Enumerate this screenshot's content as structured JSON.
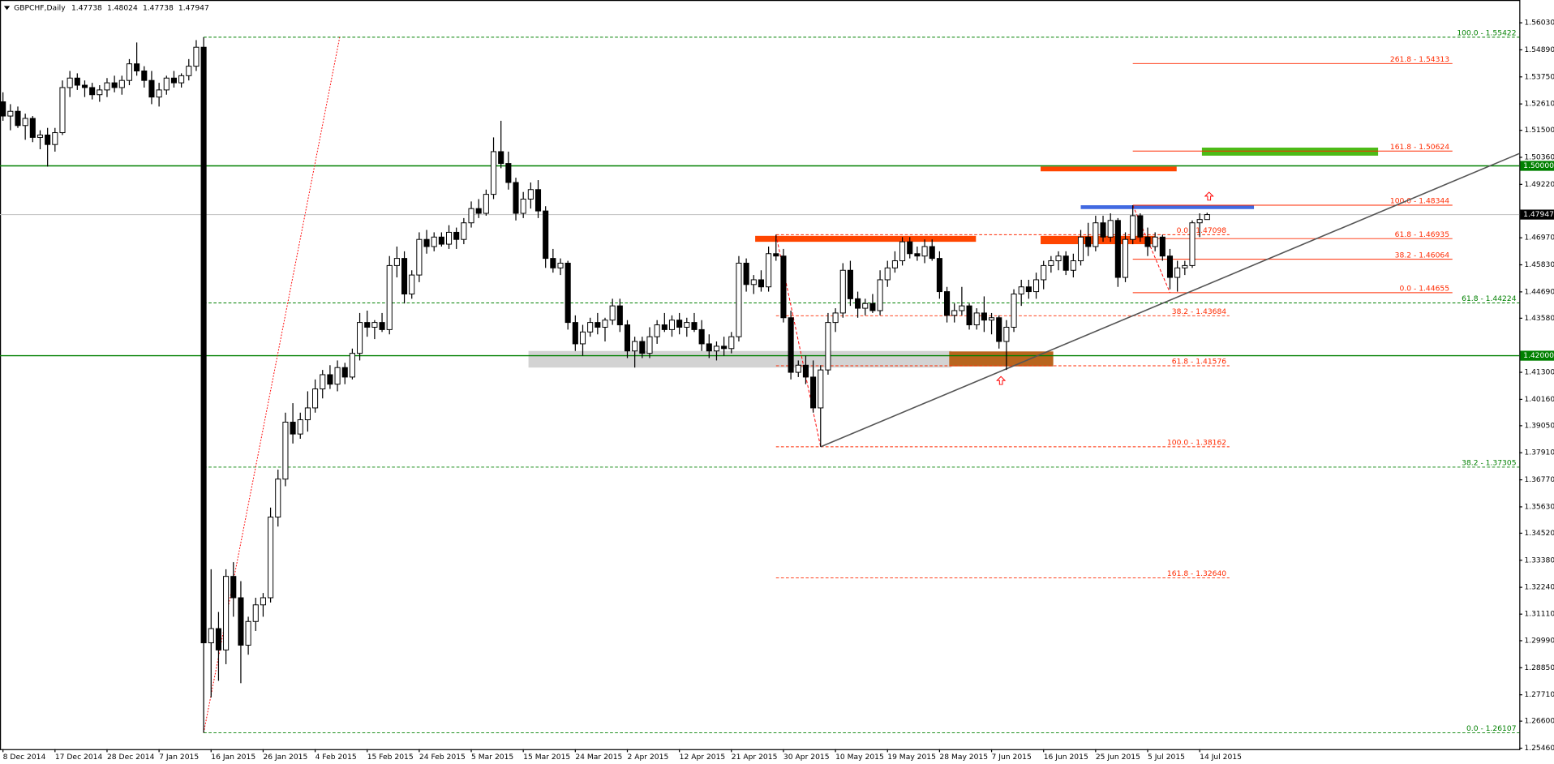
{
  "chart_data": {
    "type": "candlestick",
    "symbol": "GBPCHF,Daily",
    "up_color": "#ffffff",
    "down_color": "#000000",
    "edge_color": "#000000",
    "ylim": [
      1.2542,
      1.5699
    ],
    "xlim": [
      -0.4,
      204
    ],
    "yticks": [
      {
        "value": 1.5603,
        "label": "1.56030"
      },
      {
        "value": 1.5489,
        "label": "1.54890"
      },
      {
        "value": 1.5375,
        "label": "1.53750"
      },
      {
        "value": 1.5261,
        "label": "1.52610"
      },
      {
        "value": 1.515,
        "label": "1.51500"
      },
      {
        "value": 1.5036,
        "label": "1.50360"
      },
      {
        "value": 1.4922,
        "label": "1.49220"
      },
      {
        "value": 1.4697,
        "label": "1.46970"
      },
      {
        "value": 1.4583,
        "label": "1.45830"
      },
      {
        "value": 1.4469,
        "label": "1.44690"
      },
      {
        "value": 1.4358,
        "label": "1.43580"
      },
      {
        "value": 1.413,
        "label": "1.41300"
      },
      {
        "value": 1.4016,
        "label": "1.40160"
      },
      {
        "value": 1.3905,
        "label": "1.39050"
      },
      {
        "value": 1.3791,
        "label": "1.37910"
      },
      {
        "value": 1.3677,
        "label": "1.36770"
      },
      {
        "value": 1.3563,
        "label": "1.35630"
      },
      {
        "value": 1.3452,
        "label": "1.34520"
      },
      {
        "value": 1.3338,
        "label": "1.33380"
      },
      {
        "value": 1.3224,
        "label": "1.32240"
      },
      {
        "value": 1.3111,
        "label": "1.31110"
      },
      {
        "value": 1.2999,
        "label": "1.29990"
      },
      {
        "value": 1.2885,
        "label": "1.28850"
      },
      {
        "value": 1.2771,
        "label": "1.27710"
      },
      {
        "value": 1.266,
        "label": "1.26600"
      },
      {
        "value": 1.2546,
        "label": "1.25460"
      }
    ],
    "xticks": [
      {
        "value": 0,
        "label": "8 Dec 2014"
      },
      {
        "value": 7,
        "label": "17 Dec 2014"
      },
      {
        "value": 14,
        "label": "28 Dec 2014"
      },
      {
        "value": 21,
        "label": "7 Jan 2015"
      },
      {
        "value": 28,
        "label": "16 Jan 2015"
      },
      {
        "value": 35,
        "label": "26 Jan 2015"
      },
      {
        "value": 42,
        "label": "4 Feb 2015"
      },
      {
        "value": 49,
        "label": "15 Feb 2015"
      },
      {
        "value": 56,
        "label": "24 Feb 2015"
      },
      {
        "value": 63,
        "label": "5 Mar 2015"
      },
      {
        "value": 70,
        "label": "15 Mar 2015"
      },
      {
        "value": 77,
        "label": "24 Mar 2015"
      },
      {
        "value": 84,
        "label": "2 Apr 2015"
      },
      {
        "value": 91,
        "label": "12 Apr 2015"
      },
      {
        "value": 98,
        "label": "21 Apr 2015"
      },
      {
        "value": 105,
        "label": "30 Apr 2015"
      },
      {
        "value": 112,
        "label": "10 May 2015"
      },
      {
        "value": 119,
        "label": "19 May 2015"
      },
      {
        "value": 126,
        "label": "28 May 2015"
      },
      {
        "value": 133,
        "label": "7 Jun 2015"
      },
      {
        "value": 140,
        "label": "16 Jun 2015"
      },
      {
        "value": 147,
        "label": "25 Jun 2015"
      },
      {
        "value": 154,
        "label": "5 Jul 2015"
      },
      {
        "value": 161,
        "label": "14 Jul 2015"
      }
    ],
    "hlines": [
      {
        "value": 1.5,
        "label": "1.50000",
        "color": "#008000"
      },
      {
        "value": 1.42,
        "label": "1.42000",
        "color": "#008000"
      }
    ],
    "zones": [
      {
        "from": 70.7,
        "to": 127.6,
        "top": 1.422,
        "bottom": 1.415,
        "color": "#d3d3d3"
      },
      {
        "from": 127.3,
        "to": 141.3,
        "top": 1.4218,
        "bottom": 1.4155,
        "color": "#b8651e"
      },
      {
        "from": 101.2,
        "to": 130.9,
        "top": 1.4705,
        "bottom": 1.468,
        "color": "#ff4500"
      },
      {
        "from": 139.6,
        "to": 157.9,
        "top": 1.4997,
        "bottom": 1.4977,
        "color": "#ff4500"
      },
      {
        "from": 139.6,
        "to": 155,
        "top": 1.4705,
        "bottom": 1.467,
        "color": "#ff4500"
      },
      {
        "from": 161.3,
        "to": 185,
        "top": 1.5077,
        "bottom": 1.5043,
        "color": "#4cbb17"
      },
      {
        "from": 145,
        "to": 168.3,
        "top": 1.4834,
        "bottom": 1.4818,
        "color": "#4169e1"
      }
    ],
    "trendlines": [
      {
        "x": [
          110,
          204
        ],
        "y": [
          1.3816,
          1.5052
        ],
        "color": "#555555",
        "line_style": "solid"
      },
      {
        "x": [
          27,
          45.3
        ],
        "y": [
          1.2611,
          1.5542
        ],
        "color": "#ff0000",
        "line_style": "dotted"
      },
      {
        "x": [
          104,
          110
        ],
        "y": [
          1.471,
          1.3816
        ],
        "color": "#ff0000",
        "line_style": "dashed"
      },
      {
        "x": [
          152,
          157
        ],
        "y": [
          1.4834,
          1.4466
        ],
        "color": "#ff0000",
        "line_style": "dashed"
      }
    ],
    "fibs": [
      {
        "from": 27,
        "to": 204,
        "color": "#008000",
        "line_style": "dashed",
        "levels": [
          {
            "value": 1.55422,
            "label": "100.0 - 1.55422"
          },
          {
            "value": 1.44224,
            "label": "61.8 - 1.44224"
          },
          {
            "value": 1.37305,
            "label": "38.2 - 1.37305"
          },
          {
            "value": 1.26107,
            "label": "0.0 - 1.26107"
          }
        ]
      },
      {
        "from": 104,
        "to": 165,
        "color": "#ff2a00",
        "line_style": "dashed",
        "levels": [
          {
            "value": 1.47098,
            "label": "0.0 - 1.47098"
          },
          {
            "value": 1.43684,
            "label": "38.2 - 1.43684"
          },
          {
            "value": 1.41576,
            "label": "61.8 - 1.41576"
          },
          {
            "value": 1.38162,
            "label": "100.0 - 1.38162"
          },
          {
            "value": 1.3264,
            "label": "161.8 - 1.32640"
          }
        ]
      },
      {
        "from": 152,
        "to": 195,
        "color": "#ff2a00",
        "line_style": "solid",
        "levels": [
          {
            "value": 1.54313,
            "label": "261.8 - 1.54313"
          },
          {
            "value": 1.50624,
            "label": "161.8 - 1.50624"
          },
          {
            "value": 1.48344,
            "label": "100.0 - 1.48344"
          },
          {
            "value": 1.46935,
            "label": "61.8 - 1.46935"
          },
          {
            "value": 1.46064,
            "label": "38.2 - 1.46064"
          },
          {
            "value": 1.44655,
            "label": "0.0 - 1.44655"
          }
        ]
      }
    ],
    "ohlc": [
      [
        1.527,
        1.531,
        1.519,
        1.521
      ],
      [
        1.521,
        1.526,
        1.515,
        1.523
      ],
      [
        1.523,
        1.525,
        1.516,
        1.517
      ],
      [
        1.517,
        1.522,
        1.511,
        1.52
      ],
      [
        1.52,
        1.521,
        1.51,
        1.512
      ],
      [
        1.512,
        1.515,
        1.507,
        1.513
      ],
      [
        1.513,
        1.516,
        1.4997,
        1.509
      ],
      [
        1.509,
        1.516,
        1.506,
        1.514
      ],
      [
        1.514,
        1.536,
        1.513,
        1.533
      ],
      [
        1.533,
        1.54,
        1.529,
        1.537
      ],
      [
        1.537,
        1.539,
        1.532,
        1.534
      ],
      [
        1.534,
        1.536,
        1.529,
        1.533
      ],
      [
        1.533,
        1.535,
        1.528,
        1.53
      ],
      [
        1.53,
        1.534,
        1.527,
        1.532
      ],
      [
        1.532,
        1.537,
        1.529,
        1.535
      ],
      [
        1.535,
        1.538,
        1.531,
        1.533
      ],
      [
        1.533,
        1.538,
        1.53,
        1.536
      ],
      [
        1.536,
        1.545,
        1.534,
        1.543
      ],
      [
        1.543,
        1.552,
        1.538,
        1.54
      ],
      [
        1.54,
        1.542,
        1.533,
        1.536
      ],
      [
        1.536,
        1.54,
        1.526,
        1.529
      ],
      [
        1.529,
        1.535,
        1.525,
        1.532
      ],
      [
        1.532,
        1.538,
        1.53,
        1.537
      ],
      [
        1.537,
        1.54,
        1.533,
        1.535
      ],
      [
        1.535,
        1.539,
        1.533,
        1.538
      ],
      [
        1.538,
        1.545,
        1.536,
        1.542
      ],
      [
        1.542,
        1.553,
        1.54,
        1.55
      ],
      [
        1.55,
        1.5542,
        1.2611,
        1.299
      ],
      [
        1.299,
        1.33,
        1.276,
        1.305
      ],
      [
        1.305,
        1.312,
        1.283,
        1.296
      ],
      [
        1.296,
        1.33,
        1.29,
        1.327
      ],
      [
        1.327,
        1.333,
        1.31,
        1.318
      ],
      [
        1.318,
        1.325,
        1.282,
        1.298
      ],
      [
        1.298,
        1.31,
        1.294,
        1.308
      ],
      [
        1.308,
        1.318,
        1.304,
        1.315
      ],
      [
        1.315,
        1.32,
        1.31,
        1.318
      ],
      [
        1.318,
        1.356,
        1.316,
        1.352
      ],
      [
        1.352,
        1.372,
        1.348,
        1.368
      ],
      [
        1.368,
        1.396,
        1.365,
        1.392
      ],
      [
        1.392,
        1.4,
        1.383,
        1.387
      ],
      [
        1.387,
        1.396,
        1.385,
        1.393
      ],
      [
        1.393,
        1.405,
        1.388,
        1.398
      ],
      [
        1.398,
        1.41,
        1.396,
        1.406
      ],
      [
        1.406,
        1.414,
        1.402,
        1.412
      ],
      [
        1.412,
        1.416,
        1.406,
        1.408
      ],
      [
        1.408,
        1.418,
        1.405,
        1.415
      ],
      [
        1.415,
        1.417,
        1.408,
        1.411
      ],
      [
        1.411,
        1.423,
        1.41,
        1.421
      ],
      [
        1.421,
        1.438,
        1.418,
        1.434
      ],
      [
        1.434,
        1.439,
        1.428,
        1.432
      ],
      [
        1.432,
        1.435,
        1.427,
        1.434
      ],
      [
        1.434,
        1.438,
        1.43,
        1.431
      ],
      [
        1.431,
        1.462,
        1.429,
        1.458
      ],
      [
        1.458,
        1.466,
        1.453,
        1.461
      ],
      [
        1.461,
        1.464,
        1.442,
        1.446
      ],
      [
        1.446,
        1.456,
        1.444,
        1.454
      ],
      [
        1.454,
        1.472,
        1.451,
        1.469
      ],
      [
        1.469,
        1.473,
        1.463,
        1.466
      ],
      [
        1.466,
        1.472,
        1.464,
        1.47
      ],
      [
        1.47,
        1.472,
        1.466,
        1.467
      ],
      [
        1.467,
        1.475,
        1.465,
        1.472
      ],
      [
        1.472,
        1.474,
        1.465,
        1.469
      ],
      [
        1.469,
        1.478,
        1.467,
        1.476
      ],
      [
        1.476,
        1.485,
        1.474,
        1.482
      ],
      [
        1.482,
        1.486,
        1.478,
        1.48
      ],
      [
        1.48,
        1.49,
        1.479,
        1.488
      ],
      [
        1.488,
        1.512,
        1.486,
        1.506
      ],
      [
        1.506,
        1.519,
        1.499,
        1.501
      ],
      [
        1.501,
        1.506,
        1.49,
        1.493
      ],
      [
        1.493,
        1.495,
        1.477,
        1.48
      ],
      [
        1.48,
        1.489,
        1.478,
        1.486
      ],
      [
        1.486,
        1.493,
        1.482,
        1.49
      ],
      [
        1.49,
        1.494,
        1.478,
        1.481
      ],
      [
        1.481,
        1.483,
        1.457,
        1.461
      ],
      [
        1.461,
        1.465,
        1.455,
        1.457
      ],
      [
        1.457,
        1.461,
        1.454,
        1.459
      ],
      [
        1.459,
        1.46,
        1.431,
        1.434
      ],
      [
        1.434,
        1.437,
        1.422,
        1.425
      ],
      [
        1.425,
        1.433,
        1.42,
        1.43
      ],
      [
        1.43,
        1.436,
        1.428,
        1.434
      ],
      [
        1.434,
        1.438,
        1.429,
        1.432
      ],
      [
        1.432,
        1.436,
        1.426,
        1.435
      ],
      [
        1.435,
        1.444,
        1.433,
        1.441
      ],
      [
        1.441,
        1.444,
        1.43,
        1.433
      ],
      [
        1.433,
        1.435,
        1.419,
        1.422
      ],
      [
        1.422,
        1.428,
        1.415,
        1.426
      ],
      [
        1.426,
        1.428,
        1.419,
        1.421
      ],
      [
        1.421,
        1.432,
        1.419,
        1.428
      ],
      [
        1.428,
        1.435,
        1.425,
        1.433
      ],
      [
        1.433,
        1.438,
        1.43,
        1.431
      ],
      [
        1.431,
        1.437,
        1.428,
        1.435
      ],
      [
        1.435,
        1.438,
        1.429,
        1.432
      ],
      [
        1.432,
        1.436,
        1.428,
        1.434
      ],
      [
        1.434,
        1.438,
        1.43,
        1.431
      ],
      [
        1.431,
        1.435,
        1.422,
        1.425
      ],
      [
        1.425,
        1.429,
        1.419,
        1.422
      ],
      [
        1.422,
        1.426,
        1.418,
        1.424
      ],
      [
        1.424,
        1.428,
        1.42,
        1.423
      ],
      [
        1.423,
        1.43,
        1.421,
        1.428
      ],
      [
        1.428,
        1.462,
        1.426,
        1.459
      ],
      [
        1.459,
        1.461,
        1.447,
        1.45
      ],
      [
        1.45,
        1.454,
        1.446,
        1.452
      ],
      [
        1.452,
        1.456,
        1.447,
        1.449
      ],
      [
        1.449,
        1.466,
        1.447,
        1.463
      ],
      [
        1.463,
        1.471,
        1.46,
        1.462
      ],
      [
        1.462,
        1.465,
        1.434,
        1.436
      ],
      [
        1.436,
        1.439,
        1.41,
        1.413
      ],
      [
        1.413,
        1.418,
        1.411,
        1.416
      ],
      [
        1.416,
        1.42,
        1.408,
        1.411
      ],
      [
        1.411,
        1.418,
        1.396,
        1.398
      ],
      [
        1.398,
        1.416,
        1.3816,
        1.414
      ],
      [
        1.414,
        1.438,
        1.412,
        1.434
      ],
      [
        1.434,
        1.44,
        1.43,
        1.438
      ],
      [
        1.438,
        1.459,
        1.436,
        1.456
      ],
      [
        1.456,
        1.46,
        1.441,
        1.444
      ],
      [
        1.444,
        1.447,
        1.436,
        1.44
      ],
      [
        1.44,
        1.444,
        1.437,
        1.442
      ],
      [
        1.442,
        1.446,
        1.438,
        1.439
      ],
      [
        1.439,
        1.456,
        1.437,
        1.452
      ],
      [
        1.452,
        1.46,
        1.449,
        1.457
      ],
      [
        1.457,
        1.464,
        1.455,
        1.46
      ],
      [
        1.46,
        1.47,
        1.458,
        1.468
      ],
      [
        1.468,
        1.47,
        1.461,
        1.463
      ],
      [
        1.463,
        1.466,
        1.46,
        1.462
      ],
      [
        1.462,
        1.469,
        1.459,
        1.466
      ],
      [
        1.466,
        1.469,
        1.46,
        1.461
      ],
      [
        1.461,
        1.464,
        1.444,
        1.447
      ],
      [
        1.447,
        1.449,
        1.434,
        1.437
      ],
      [
        1.437,
        1.442,
        1.434,
        1.439
      ],
      [
        1.439,
        1.449,
        1.437,
        1.441
      ],
      [
        1.441,
        1.442,
        1.431,
        1.433
      ],
      [
        1.433,
        1.44,
        1.431,
        1.438
      ],
      [
        1.438,
        1.445,
        1.43,
        1.435
      ],
      [
        1.435,
        1.438,
        1.429,
        1.436
      ],
      [
        1.436,
        1.437,
        1.423,
        1.426
      ],
      [
        1.426,
        1.435,
        1.414,
        1.432
      ],
      [
        1.432,
        1.448,
        1.43,
        1.446
      ],
      [
        1.446,
        1.452,
        1.441,
        1.449
      ],
      [
        1.449,
        1.452,
        1.444,
        1.447
      ],
      [
        1.447,
        1.455,
        1.444,
        1.452
      ],
      [
        1.452,
        1.46,
        1.448,
        1.458
      ],
      [
        1.458,
        1.462,
        1.455,
        1.46
      ],
      [
        1.46,
        1.464,
        1.456,
        1.462
      ],
      [
        1.462,
        1.464,
        1.454,
        1.456
      ],
      [
        1.456,
        1.463,
        1.453,
        1.46
      ],
      [
        1.46,
        1.473,
        1.458,
        1.47
      ],
      [
        1.47,
        1.476,
        1.462,
        1.466
      ],
      [
        1.466,
        1.479,
        1.464,
        1.476
      ],
      [
        1.476,
        1.479,
        1.468,
        1.47
      ],
      [
        1.47,
        1.48,
        1.468,
        1.477
      ],
      [
        1.477,
        1.478,
        1.449,
        1.453
      ],
      [
        1.453,
        1.472,
        1.451,
        1.469
      ],
      [
        1.469,
        1.4834,
        1.467,
        1.479
      ],
      [
        1.479,
        1.48,
        1.468,
        1.47
      ],
      [
        1.47,
        1.474,
        1.462,
        1.466
      ],
      [
        1.466,
        1.472,
        1.464,
        1.47
      ],
      [
        1.47,
        1.471,
        1.46,
        1.462
      ],
      [
        1.462,
        1.465,
        1.448,
        1.453
      ],
      [
        1.453,
        1.46,
        1.447,
        1.457
      ],
      [
        1.457,
        1.46,
        1.454,
        1.458
      ],
      [
        1.458,
        1.477,
        1.457,
        1.476
      ],
      [
        1.476,
        1.48,
        1.47,
        1.4774
      ],
      [
        1.47738,
        1.48024,
        1.47738,
        1.47947
      ]
    ]
  }
}
